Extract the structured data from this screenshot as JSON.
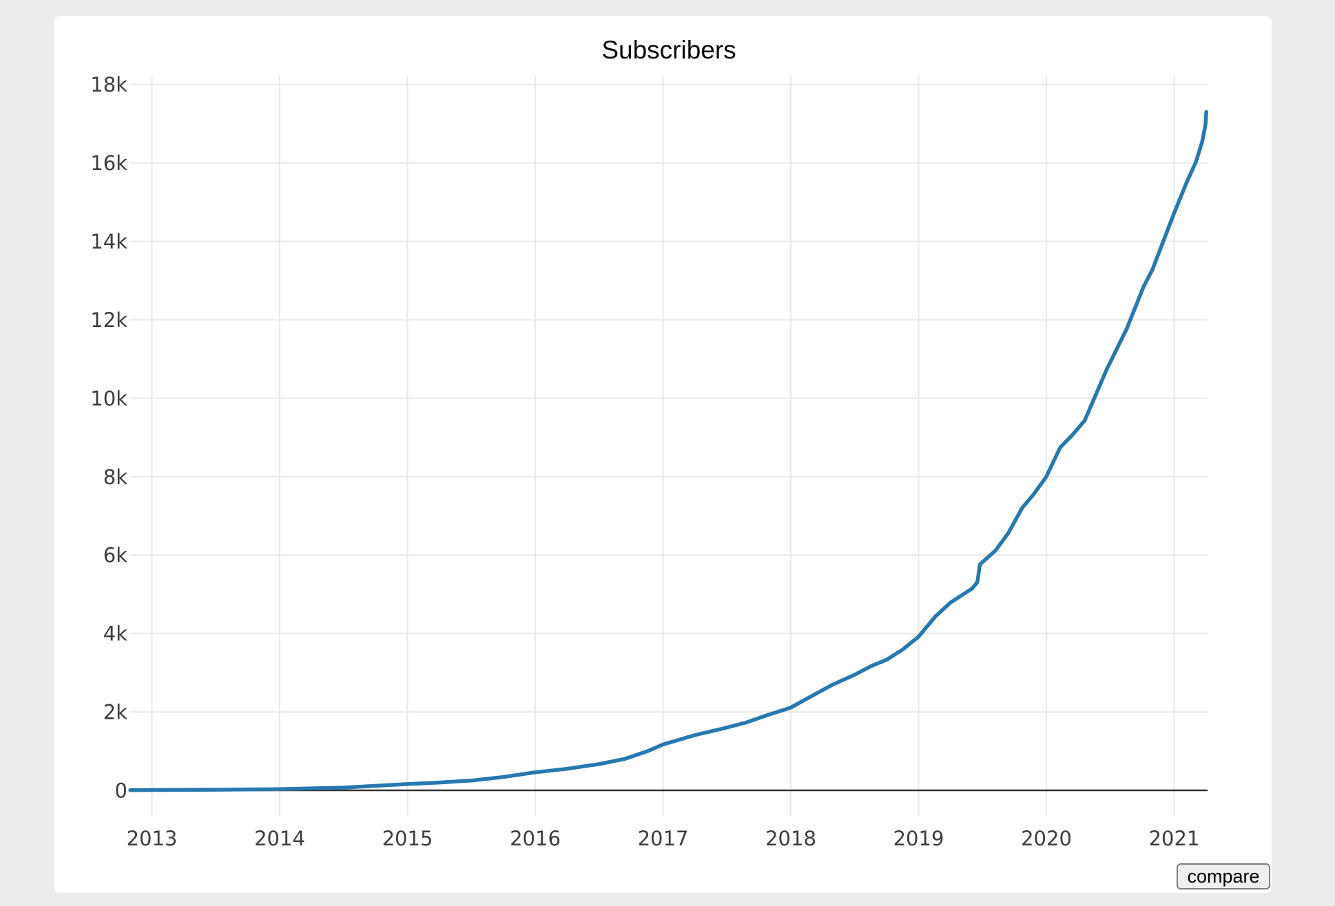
{
  "footer": {
    "compare_label": "compare"
  },
  "chart_data": {
    "type": "line",
    "title": "Subscribers",
    "xlabel": "",
    "ylabel": "",
    "legend": "none",
    "grid": "on",
    "xlim": [
      2012.83,
      2021.3
    ],
    "ylim": [
      0,
      18500
    ],
    "x_ticks": [
      {
        "value": 2013,
        "label": "2013"
      },
      {
        "value": 2014,
        "label": "2014"
      },
      {
        "value": 2015,
        "label": "2015"
      },
      {
        "value": 2016,
        "label": "2016"
      },
      {
        "value": 2017,
        "label": "2017"
      },
      {
        "value": 2018,
        "label": "2018"
      },
      {
        "value": 2019,
        "label": "2019"
      },
      {
        "value": 2020,
        "label": "2020"
      },
      {
        "value": 2021,
        "label": "2021"
      }
    ],
    "y_ticks": [
      {
        "value": 0,
        "label": "0"
      },
      {
        "value": 2000,
        "label": "2k"
      },
      {
        "value": 4000,
        "label": "4k"
      },
      {
        "value": 6000,
        "label": "6k"
      },
      {
        "value": 8000,
        "label": "8k"
      },
      {
        "value": 10000,
        "label": "10k"
      },
      {
        "value": 12000,
        "label": "12k"
      },
      {
        "value": 14000,
        "label": "14k"
      },
      {
        "value": 16000,
        "label": "16k"
      },
      {
        "value": 18000,
        "label": "18k"
      }
    ],
    "colors": {
      "line": "#2878b0",
      "gridline": "#e8e8e8",
      "axis_line": "#333333",
      "tick_label": "#3d3d3d",
      "card_bg": "#ffffff",
      "page_bg": "#ececec"
    },
    "series": [
      {
        "name": "Subscribers",
        "points": [
          [
            2012.83,
            5
          ],
          [
            2013.0,
            8
          ],
          [
            2013.5,
            15
          ],
          [
            2014.0,
            30
          ],
          [
            2014.5,
            70
          ],
          [
            2015.0,
            160
          ],
          [
            2015.25,
            200
          ],
          [
            2015.5,
            250
          ],
          [
            2015.75,
            340
          ],
          [
            2016.0,
            460
          ],
          [
            2016.25,
            550
          ],
          [
            2016.5,
            670
          ],
          [
            2016.7,
            800
          ],
          [
            2016.88,
            1000
          ],
          [
            2017.0,
            1170
          ],
          [
            2017.25,
            1410
          ],
          [
            2017.45,
            1560
          ],
          [
            2017.65,
            1730
          ],
          [
            2017.8,
            1900
          ],
          [
            2018.0,
            2110
          ],
          [
            2018.15,
            2380
          ],
          [
            2018.33,
            2700
          ],
          [
            2018.5,
            2950
          ],
          [
            2018.63,
            3170
          ],
          [
            2018.75,
            3330
          ],
          [
            2018.88,
            3600
          ],
          [
            2019.0,
            3920
          ],
          [
            2019.13,
            4430
          ],
          [
            2019.25,
            4790
          ],
          [
            2019.35,
            5000
          ],
          [
            2019.42,
            5150
          ],
          [
            2019.46,
            5310
          ],
          [
            2019.48,
            5760
          ],
          [
            2019.6,
            6110
          ],
          [
            2019.7,
            6550
          ],
          [
            2019.81,
            7200
          ],
          [
            2019.9,
            7550
          ],
          [
            2020.0,
            8000
          ],
          [
            2020.08,
            8550
          ],
          [
            2020.11,
            8750
          ],
          [
            2020.2,
            9050
          ],
          [
            2020.3,
            9430
          ],
          [
            2020.47,
            10720
          ],
          [
            2020.63,
            11780
          ],
          [
            2020.76,
            12840
          ],
          [
            2020.83,
            13280
          ],
          [
            2020.87,
            13620
          ],
          [
            2021.0,
            14720
          ],
          [
            2021.1,
            15520
          ],
          [
            2021.17,
            16020
          ],
          [
            2021.22,
            16550
          ],
          [
            2021.245,
            16960
          ],
          [
            2021.252,
            17300
          ]
        ]
      }
    ]
  }
}
